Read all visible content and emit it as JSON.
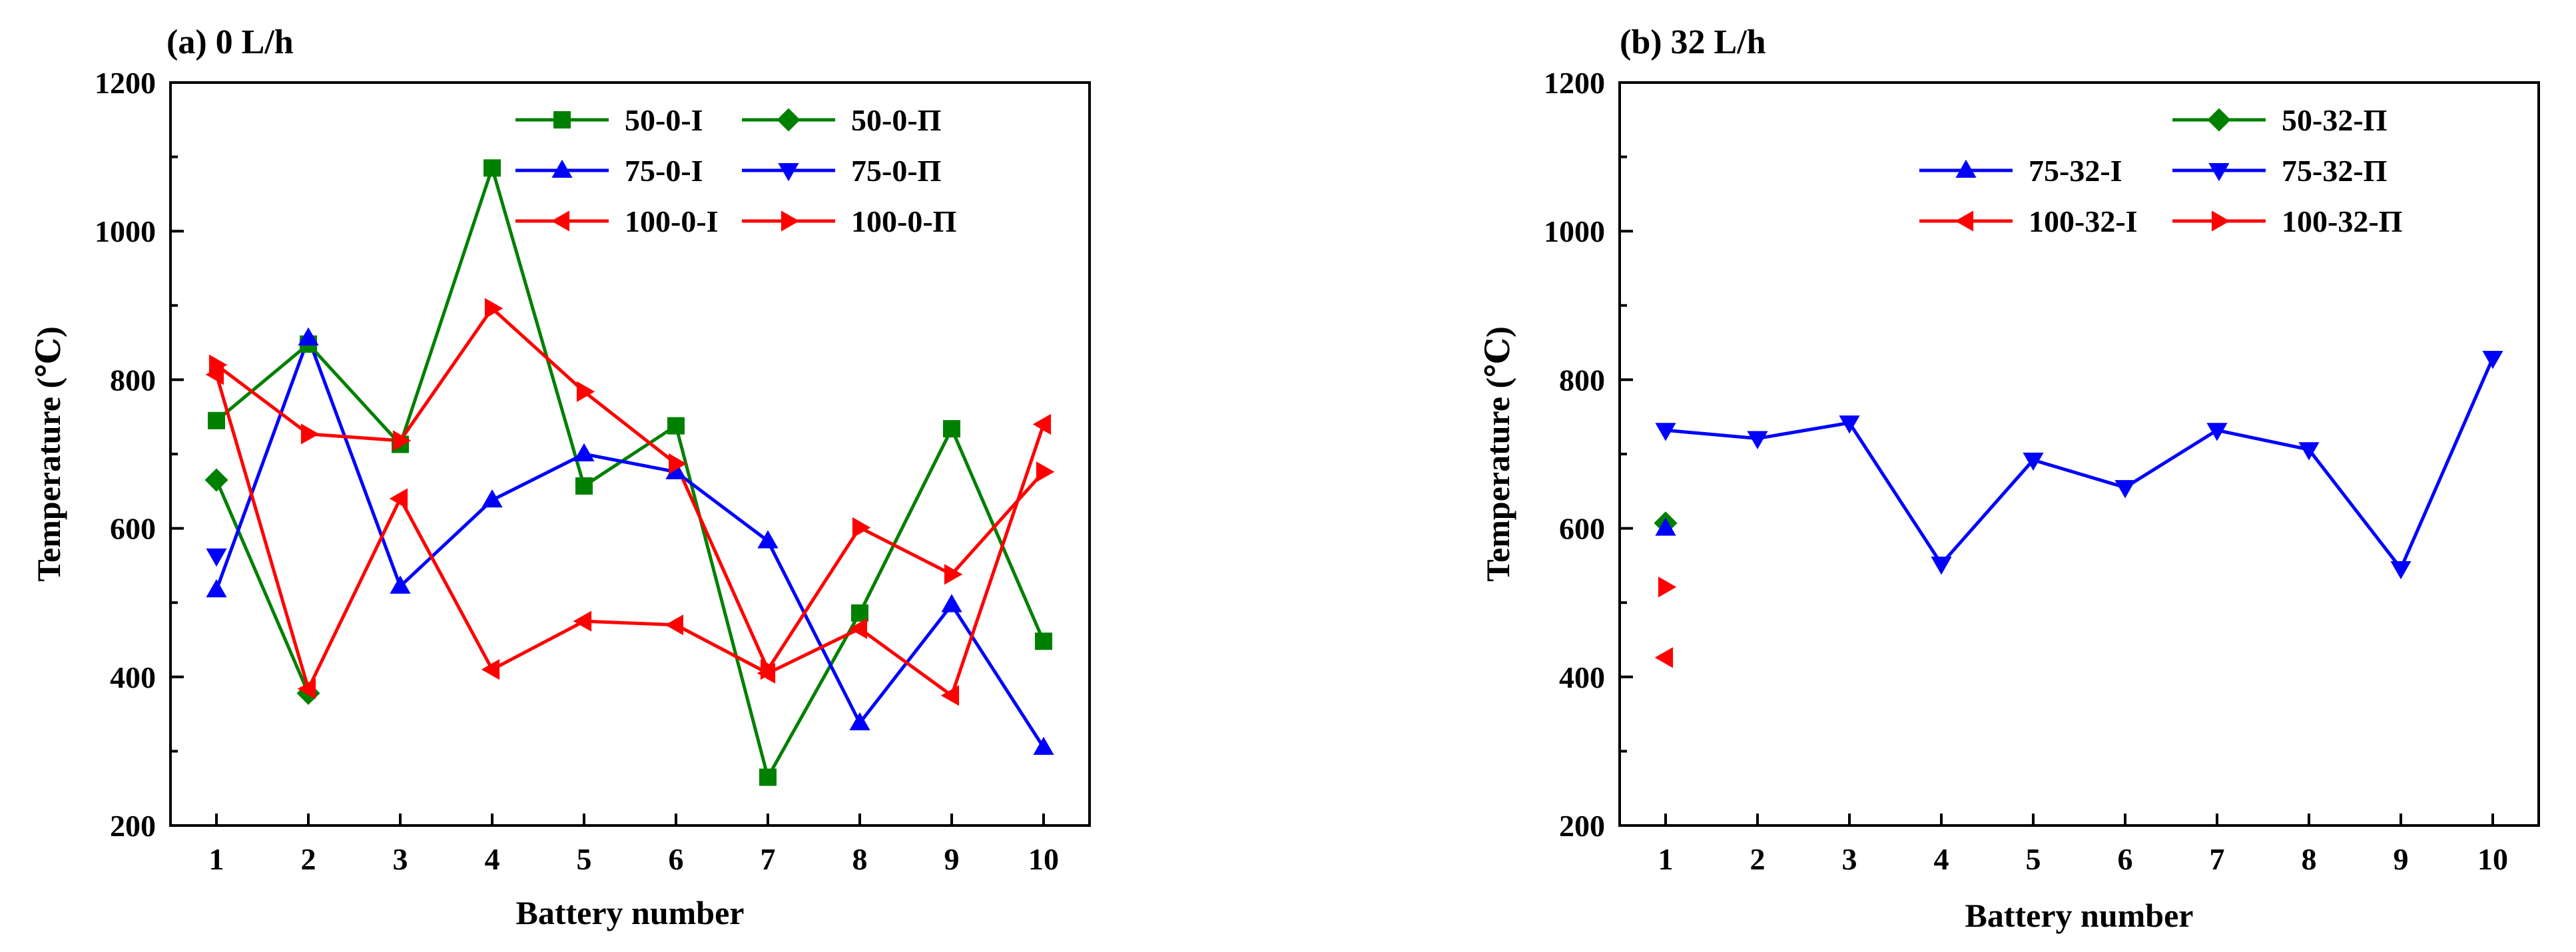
{
  "chart_data": [
    {
      "type": "line",
      "title": "(a) 0 L/h",
      "xlabel": "Battery number",
      "ylabel": "Temperature (℃)",
      "x": [
        1,
        2,
        3,
        4,
        5,
        6,
        7,
        8,
        9,
        10
      ],
      "xlim": [
        0.5,
        10.5
      ],
      "ylim": [
        200,
        1200
      ],
      "yticks": [
        200,
        400,
        600,
        800,
        1000,
        1200
      ],
      "grid": false,
      "legend_position": "top-right",
      "series": [
        {
          "name": "50-0-I",
          "color": "#008000",
          "marker": "square",
          "values": [
            745,
            848,
            713,
            1085,
            657,
            738,
            265,
            486,
            734,
            448
          ]
        },
        {
          "name": "50-0-Π",
          "color": "#008000",
          "marker": "diamond",
          "values": [
            665,
            378,
            null,
            null,
            null,
            null,
            null,
            null,
            null,
            null
          ]
        },
        {
          "name": "75-0-I",
          "color": "#0000ff",
          "marker": "triangle-up",
          "values": [
            517,
            856,
            522,
            638,
            700,
            676,
            583,
            338,
            497,
            305
          ]
        },
        {
          "name": "75-0-Π",
          "color": "#0000ff",
          "marker": "triangle-down",
          "values": [
            563,
            null,
            null,
            null,
            null,
            null,
            null,
            null,
            null,
            null
          ]
        },
        {
          "name": "100-0-I",
          "color": "#ff0000",
          "marker": "triangle-left",
          "values": [
            807,
            384,
            640,
            410,
            475,
            470,
            405,
            465,
            375,
            740
          ]
        },
        {
          "name": "100-0-Π",
          "color": "#ff0000",
          "marker": "triangle-right",
          "values": [
            820,
            727,
            718,
            896,
            784,
            687,
            410,
            601,
            538,
            676
          ]
        }
      ]
    },
    {
      "type": "line",
      "title": "(b) 32 L/h",
      "xlabel": "Battery number",
      "ylabel": "Temperature (℃)",
      "x": [
        1,
        2,
        3,
        4,
        5,
        6,
        7,
        8,
        9,
        10
      ],
      "xlim": [
        0.5,
        10.5
      ],
      "ylim": [
        200,
        1200
      ],
      "yticks": [
        200,
        400,
        600,
        800,
        1000,
        1200
      ],
      "grid": false,
      "legend_position": "top-right",
      "series": [
        {
          "name": "50-32-Π",
          "color": "#008000",
          "marker": "diamond",
          "values": [
            607,
            null,
            null,
            null,
            null,
            null,
            null,
            null,
            null,
            null
          ]
        },
        {
          "name": "75-32-I",
          "color": "#0000ff",
          "marker": "triangle-up",
          "values": [
            600,
            null,
            null,
            null,
            null,
            null,
            null,
            null,
            null,
            null
          ]
        },
        {
          "name": "75-32-Π",
          "color": "#0000ff",
          "marker": "triangle-down",
          "values": [
            732,
            721,
            742,
            552,
            692,
            655,
            732,
            706,
            546,
            829
          ]
        },
        {
          "name": "100-32-I",
          "color": "#ff0000",
          "marker": "triangle-left",
          "values": [
            426,
            null,
            null,
            null,
            null,
            null,
            null,
            null,
            null,
            null
          ]
        },
        {
          "name": "100-32-Π",
          "color": "#ff0000",
          "marker": "triangle-right",
          "values": [
            521,
            null,
            null,
            null,
            null,
            null,
            null,
            null,
            null,
            null
          ]
        }
      ]
    }
  ]
}
